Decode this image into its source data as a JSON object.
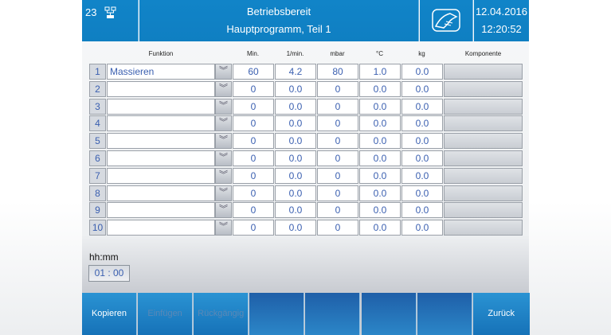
{
  "header": {
    "program_number": "23",
    "status": "Betriebsbereit",
    "program": "Hauptprogramm, Teil 1",
    "date": "12.04.2016",
    "time": "12:20:52",
    "icons": [
      "network-icon",
      "massage-hand-icon"
    ]
  },
  "columns": [
    "Funktion",
    "Min.",
    "1/min.",
    "mbar",
    "°C",
    "kg",
    "Komponente"
  ],
  "rows": [
    {
      "n": "1",
      "funktion": "Massieren",
      "min": "60",
      "rpm": "4.2",
      "mbar": "80",
      "c": "1.0",
      "kg": "0.0"
    },
    {
      "n": "2",
      "funktion": "",
      "min": "0",
      "rpm": "0.0",
      "mbar": "0",
      "c": "0.0",
      "kg": "0.0"
    },
    {
      "n": "3",
      "funktion": "",
      "min": "0",
      "rpm": "0.0",
      "mbar": "0",
      "c": "0.0",
      "kg": "0.0"
    },
    {
      "n": "4",
      "funktion": "",
      "min": "0",
      "rpm": "0.0",
      "mbar": "0",
      "c": "0.0",
      "kg": "0.0"
    },
    {
      "n": "5",
      "funktion": "",
      "min": "0",
      "rpm": "0.0",
      "mbar": "0",
      "c": "0.0",
      "kg": "0.0"
    },
    {
      "n": "6",
      "funktion": "",
      "min": "0",
      "rpm": "0.0",
      "mbar": "0",
      "c": "0.0",
      "kg": "0.0"
    },
    {
      "n": "7",
      "funktion": "",
      "min": "0",
      "rpm": "0.0",
      "mbar": "0",
      "c": "0.0",
      "kg": "0.0"
    },
    {
      "n": "8",
      "funktion": "",
      "min": "0",
      "rpm": "0.0",
      "mbar": "0",
      "c": "0.0",
      "kg": "0.0"
    },
    {
      "n": "9",
      "funktion": "",
      "min": "0",
      "rpm": "0.0",
      "mbar": "0",
      "c": "0.0",
      "kg": "0.0"
    },
    {
      "n": "10",
      "funktion": "",
      "min": "0",
      "rpm": "0.0",
      "mbar": "0",
      "c": "0.0",
      "kg": "0.0"
    }
  ],
  "duration": {
    "label": "hh:mm",
    "value": "01 : 00"
  },
  "buttons": [
    {
      "label": "Kopieren",
      "enabled": true
    },
    {
      "label": "Einfügen",
      "enabled": false
    },
    {
      "label": "Rückgängig",
      "enabled": false
    },
    {
      "label": ""
    },
    {
      "label": ""
    },
    {
      "label": ""
    },
    {
      "label": ""
    },
    {
      "label": "Zurück",
      "enabled": true
    }
  ]
}
